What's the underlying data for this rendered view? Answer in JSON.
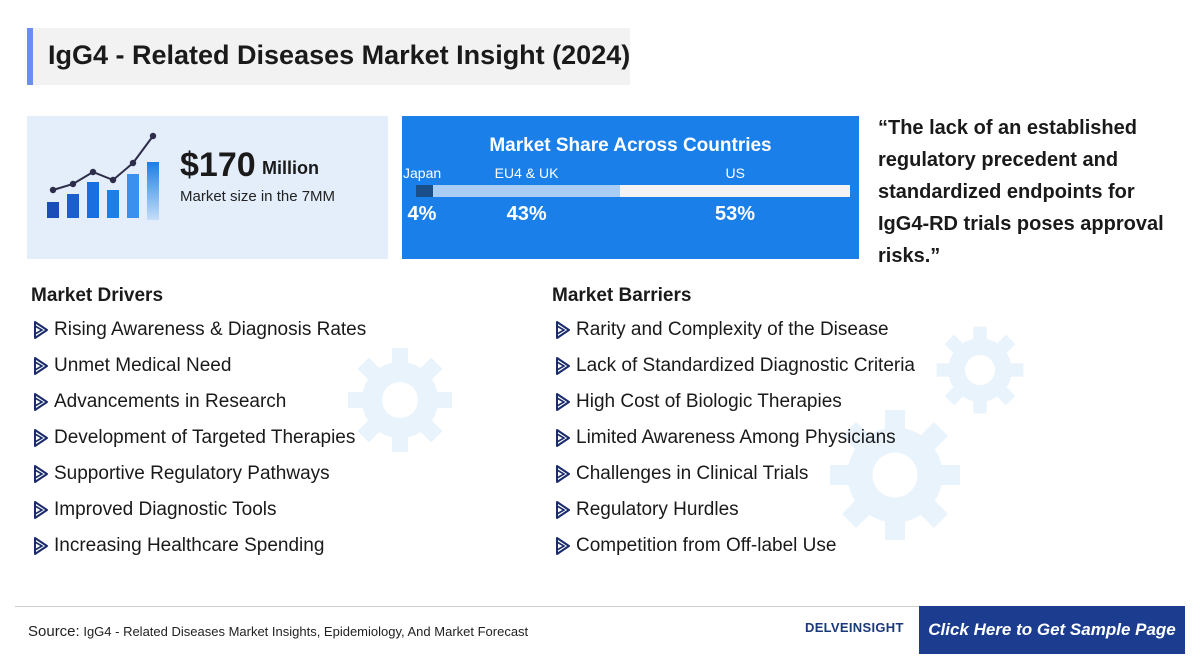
{
  "title": "IgG4 - Related Diseases Market Insight (2024)",
  "market_size": {
    "value": "$170",
    "unit": "Million",
    "label": "Market size in the 7MM"
  },
  "share": {
    "title": "Market Share Across Countries",
    "segments": [
      {
        "label": "Japan",
        "value_text": "4%",
        "color": "#1a4f8a"
      },
      {
        "label": "EU4 & UK",
        "value_text": "43%",
        "color": "#a9cdf3"
      },
      {
        "label": "US",
        "value_text": "53%",
        "color": "#f3f3f3"
      }
    ]
  },
  "chart_data": {
    "type": "bar",
    "title": "Market Share Across Countries",
    "categories": [
      "Japan",
      "EU4 & UK",
      "US"
    ],
    "values": [
      4,
      43,
      53
    ],
    "unit": "%",
    "stacked": true,
    "orientation": "horizontal"
  },
  "quote": "“The lack of an established regulatory precedent and standardized endpoints for IgG4-RD trials poses approval risks.”",
  "drivers": {
    "heading": "Market Drivers",
    "items": [
      "Rising Awareness & Diagnosis Rates",
      "Unmet Medical Need",
      "Advancements in Research",
      "Development of Targeted Therapies",
      "Supportive Regulatory Pathways",
      "Improved Diagnostic Tools",
      "Increasing Healthcare Spending"
    ]
  },
  "barriers": {
    "heading": "Market Barriers",
    "items": [
      "Rarity and Complexity of the Disease",
      "Lack of Standardized Diagnostic Criteria",
      "High Cost of Biologic Therapies",
      "Limited Awareness Among Physicians",
      "Challenges in Clinical Trials",
      "Regulatory Hurdles",
      "Competition from Off-label Use"
    ]
  },
  "footer": {
    "source_label": "Source:",
    "source_text": "IgG4 - Related Diseases Market Insights, Epidemiology, And Market Forecast",
    "brand": "DELVEINSIGHT",
    "cta": "Click Here to Get Sample Page"
  },
  "colors": {
    "accent": "#1a7fe8",
    "title_bar": "#6b8ef5",
    "cta_bg": "#1c3d8f"
  }
}
